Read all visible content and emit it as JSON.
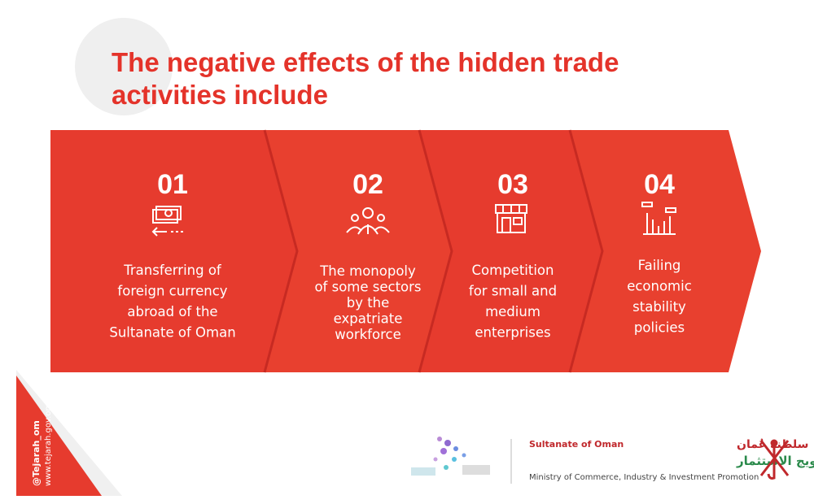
{
  "header": {
    "title": [
      "The negative effects of the hidden trade",
      "activities include"
    ]
  },
  "steps": [
    {
      "number": "01",
      "text": [
        "Transferring of",
        "foreign currency",
        "abroad of the",
        "Sultanate of Oman"
      ]
    },
    {
      "number": "02",
      "text": [
        "The monopoly",
        "of some sectors",
        "by  the",
        "expatriate",
        "workforce"
      ]
    },
    {
      "number": "03",
      "text": [
        "Competition",
        "for small and",
        "medium",
        "enterprises"
      ]
    },
    {
      "number": "04",
      "text": [
        "Failing",
        "economic",
        "stability",
        "policies"
      ]
    }
  ],
  "social": {
    "handle": "@Tejarah_om",
    "website": "www.tejarah.gov.om"
  },
  "footer": {
    "country_en": "Sultanate of Oman",
    "country_ar": "سلطنة عُمان",
    "ministry_ar": "وزارة التجارة والصناعة وترويج الاستثمار",
    "ministry_en": "Ministry of Commerce, Industry & Investment Promotion"
  }
}
